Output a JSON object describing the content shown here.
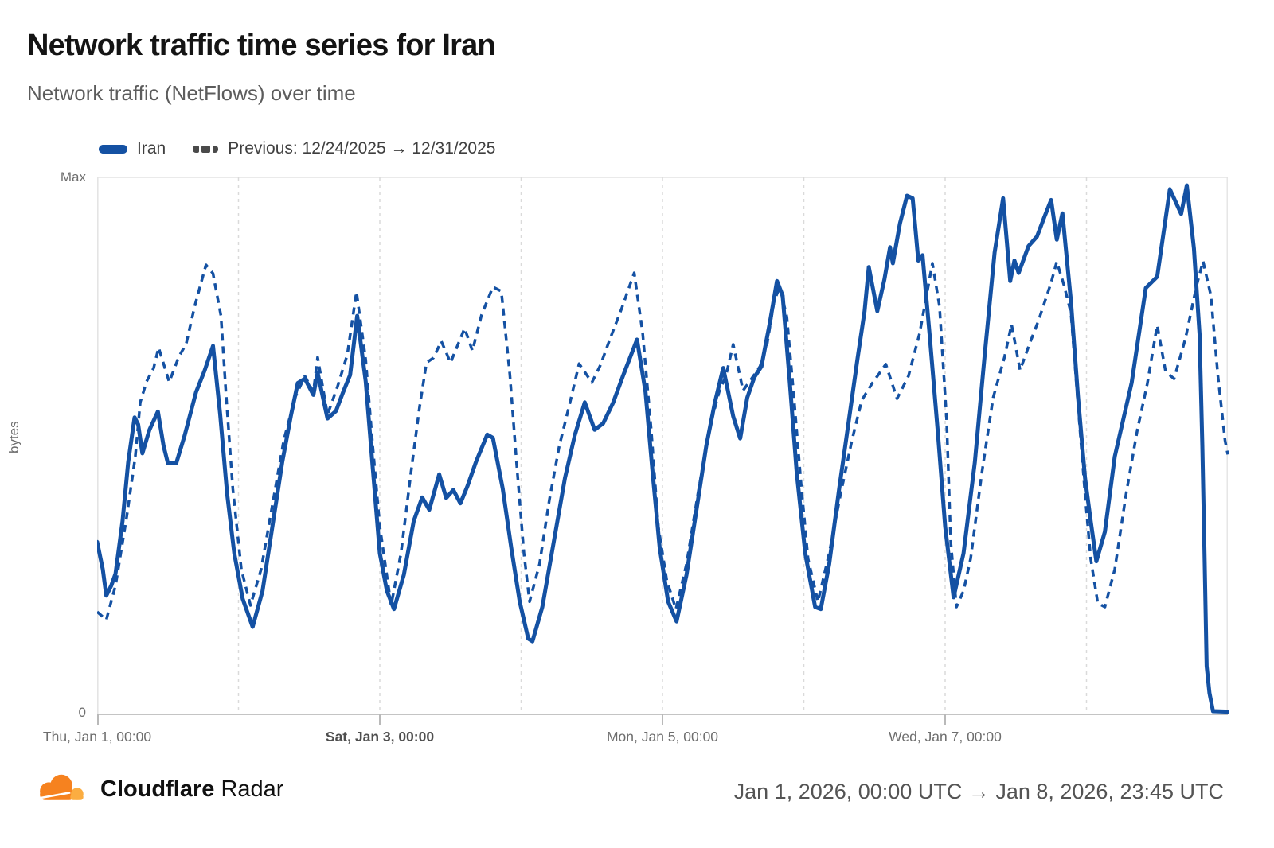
{
  "header": {
    "title": "Network traffic time series for Iran",
    "subtitle": "Network traffic (NetFlows) over time"
  },
  "legend": {
    "series1_label": "Iran",
    "series2_label": "Previous: 12/24/2025 → 12/31/2025"
  },
  "chart_data": {
    "type": "line",
    "title": "Network traffic time series for Iran",
    "subtitle": "Network traffic (NetFlows) over time",
    "ylabel": "bytes",
    "y_axis": {
      "top_tick": "Max",
      "bottom_tick": "0"
    },
    "ylim_normalized": [
      0,
      1
    ],
    "x_unit": "days since Jan 1, 2026 00:00 UTC",
    "x_range_days": [
      0,
      8
    ],
    "grid": "vertical dashed gridline at each day boundary",
    "legend_position": "top-left",
    "x_tick_labels": [
      {
        "label": "Thu, Jan 1, 00:00",
        "day": 0,
        "bold": false
      },
      {
        "label": "Sat, Jan 3, 00:00",
        "day": 2,
        "bold": true
      },
      {
        "label": "Mon, Jan 5, 00:00",
        "day": 4,
        "bold": false
      },
      {
        "label": "Wed, Jan 7, 00:00",
        "day": 6,
        "bold": false
      }
    ],
    "series": [
      {
        "name": "Iran",
        "period": "Jan 1, 2026 00:00 UTC → Jan 8, 2026 23:45 UTC",
        "style": "solid",
        "color": "#1451A3",
        "points": [
          [
            0.0,
            0.321
          ],
          [
            0.04,
            0.27
          ],
          [
            0.065,
            0.221
          ],
          [
            0.1,
            0.24
          ],
          [
            0.13,
            0.262
          ],
          [
            0.18,
            0.36
          ],
          [
            0.22,
            0.47
          ],
          [
            0.265,
            0.553
          ],
          [
            0.29,
            0.54
          ],
          [
            0.32,
            0.486
          ],
          [
            0.37,
            0.53
          ],
          [
            0.43,
            0.564
          ],
          [
            0.47,
            0.5
          ],
          [
            0.5,
            0.468
          ],
          [
            0.56,
            0.468
          ],
          [
            0.62,
            0.52
          ],
          [
            0.7,
            0.6
          ],
          [
            0.76,
            0.64
          ],
          [
            0.82,
            0.686
          ],
          [
            0.87,
            0.56
          ],
          [
            0.92,
            0.41
          ],
          [
            0.97,
            0.3
          ],
          [
            1.03,
            0.215
          ],
          [
            1.1,
            0.163
          ],
          [
            1.17,
            0.23
          ],
          [
            1.24,
            0.35
          ],
          [
            1.31,
            0.47
          ],
          [
            1.37,
            0.555
          ],
          [
            1.42,
            0.617
          ],
          [
            1.47,
            0.625
          ],
          [
            1.53,
            0.595
          ],
          [
            1.56,
            0.636
          ],
          [
            1.63,
            0.551
          ],
          [
            1.69,
            0.565
          ],
          [
            1.74,
            0.6
          ],
          [
            1.79,
            0.632
          ],
          [
            1.84,
            0.742
          ],
          [
            1.9,
            0.62
          ],
          [
            1.95,
            0.46
          ],
          [
            2.0,
            0.3
          ],
          [
            2.05,
            0.23
          ],
          [
            2.1,
            0.196
          ],
          [
            2.17,
            0.26
          ],
          [
            2.24,
            0.36
          ],
          [
            2.3,
            0.404
          ],
          [
            2.35,
            0.381
          ],
          [
            2.42,
            0.447
          ],
          [
            2.47,
            0.403
          ],
          [
            2.52,
            0.418
          ],
          [
            2.57,
            0.393
          ],
          [
            2.62,
            0.425
          ],
          [
            2.68,
            0.47
          ],
          [
            2.76,
            0.521
          ],
          [
            2.8,
            0.515
          ],
          [
            2.87,
            0.42
          ],
          [
            2.93,
            0.31
          ],
          [
            2.99,
            0.21
          ],
          [
            3.05,
            0.141
          ],
          [
            3.08,
            0.136
          ],
          [
            3.15,
            0.2
          ],
          [
            3.23,
            0.32
          ],
          [
            3.31,
            0.44
          ],
          [
            3.38,
            0.52
          ],
          [
            3.45,
            0.581
          ],
          [
            3.52,
            0.53
          ],
          [
            3.58,
            0.542
          ],
          [
            3.65,
            0.58
          ],
          [
            3.72,
            0.63
          ],
          [
            3.82,
            0.698
          ],
          [
            3.88,
            0.6
          ],
          [
            3.93,
            0.45
          ],
          [
            3.98,
            0.31
          ],
          [
            4.04,
            0.21
          ],
          [
            4.1,
            0.173
          ],
          [
            4.17,
            0.26
          ],
          [
            4.24,
            0.38
          ],
          [
            4.31,
            0.5
          ],
          [
            4.37,
            0.58
          ],
          [
            4.43,
            0.645
          ],
          [
            4.5,
            0.555
          ],
          [
            4.55,
            0.514
          ],
          [
            4.6,
            0.59
          ],
          [
            4.65,
            0.628
          ],
          [
            4.7,
            0.648
          ],
          [
            4.76,
            0.73
          ],
          [
            4.81,
            0.807
          ],
          [
            4.85,
            0.78
          ],
          [
            4.9,
            0.62
          ],
          [
            4.95,
            0.45
          ],
          [
            5.01,
            0.3
          ],
          [
            5.08,
            0.2
          ],
          [
            5.12,
            0.196
          ],
          [
            5.18,
            0.28
          ],
          [
            5.25,
            0.42
          ],
          [
            5.32,
            0.55
          ],
          [
            5.38,
            0.662
          ],
          [
            5.43,
            0.751
          ],
          [
            5.46,
            0.833
          ],
          [
            5.52,
            0.751
          ],
          [
            5.57,
            0.81
          ],
          [
            5.61,
            0.87
          ],
          [
            5.63,
            0.84
          ],
          [
            5.68,
            0.914
          ],
          [
            5.73,
            0.966
          ],
          [
            5.77,
            0.961
          ],
          [
            5.81,
            0.845
          ],
          [
            5.84,
            0.855
          ],
          [
            5.89,
            0.707
          ],
          [
            5.95,
            0.52
          ],
          [
            6.0,
            0.35
          ],
          [
            6.06,
            0.218
          ],
          [
            6.13,
            0.3
          ],
          [
            6.21,
            0.47
          ],
          [
            6.28,
            0.67
          ],
          [
            6.35,
            0.86
          ],
          [
            6.41,
            0.961
          ],
          [
            6.46,
            0.807
          ],
          [
            6.49,
            0.845
          ],
          [
            6.52,
            0.822
          ],
          [
            6.59,
            0.872
          ],
          [
            6.65,
            0.89
          ],
          [
            6.7,
            0.925
          ],
          [
            6.75,
            0.958
          ],
          [
            6.79,
            0.884
          ],
          [
            6.83,
            0.933
          ],
          [
            6.89,
            0.769
          ],
          [
            6.94,
            0.591
          ],
          [
            6.99,
            0.44
          ],
          [
            7.03,
            0.36
          ],
          [
            7.07,
            0.285
          ],
          [
            7.13,
            0.34
          ],
          [
            7.2,
            0.48
          ],
          [
            7.32,
            0.618
          ],
          [
            7.42,
            0.794
          ],
          [
            7.5,
            0.815
          ],
          [
            7.59,
            0.978
          ],
          [
            7.67,
            0.932
          ],
          [
            7.71,
            0.985
          ],
          [
            7.76,
            0.868
          ],
          [
            7.8,
            0.708
          ],
          [
            7.82,
            0.5
          ],
          [
            7.835,
            0.3
          ],
          [
            7.85,
            0.09
          ],
          [
            7.87,
            0.04
          ],
          [
            7.895,
            0.006
          ],
          [
            8.0,
            0.005
          ]
        ]
      },
      {
        "name": "Previous: 12/24/2025 → 12/31/2025",
        "period": "Dec 24, 2025 → Dec 31, 2025 (overlaid on same axis)",
        "style": "dashed",
        "color": "#1451A3",
        "points": [
          [
            0.0,
            0.191
          ],
          [
            0.065,
            0.176
          ],
          [
            0.13,
            0.24
          ],
          [
            0.21,
            0.37
          ],
          [
            0.27,
            0.48
          ],
          [
            0.305,
            0.581
          ],
          [
            0.35,
            0.62
          ],
          [
            0.4,
            0.645
          ],
          [
            0.435,
            0.683
          ],
          [
            0.51,
            0.619
          ],
          [
            0.58,
            0.667
          ],
          [
            0.63,
            0.69
          ],
          [
            0.69,
            0.76
          ],
          [
            0.77,
            0.837
          ],
          [
            0.82,
            0.821
          ],
          [
            0.876,
            0.742
          ],
          [
            0.91,
            0.604
          ],
          [
            0.96,
            0.42
          ],
          [
            1.02,
            0.27
          ],
          [
            1.085,
            0.203
          ],
          [
            1.16,
            0.27
          ],
          [
            1.24,
            0.39
          ],
          [
            1.32,
            0.51
          ],
          [
            1.4,
            0.59
          ],
          [
            1.47,
            0.63
          ],
          [
            1.53,
            0.6
          ],
          [
            1.56,
            0.665
          ],
          [
            1.63,
            0.558
          ],
          [
            1.7,
            0.61
          ],
          [
            1.77,
            0.67
          ],
          [
            1.835,
            0.787
          ],
          [
            1.9,
            0.66
          ],
          [
            1.95,
            0.5
          ],
          [
            2.0,
            0.35
          ],
          [
            2.08,
            0.203
          ],
          [
            2.15,
            0.3
          ],
          [
            2.22,
            0.45
          ],
          [
            2.28,
            0.57
          ],
          [
            2.33,
            0.655
          ],
          [
            2.38,
            0.664
          ],
          [
            2.435,
            0.695
          ],
          [
            2.5,
            0.655
          ],
          [
            2.6,
            0.719
          ],
          [
            2.655,
            0.677
          ],
          [
            2.72,
            0.744
          ],
          [
            2.8,
            0.796
          ],
          [
            2.86,
            0.788
          ],
          [
            2.92,
            0.633
          ],
          [
            2.97,
            0.46
          ],
          [
            3.02,
            0.3
          ],
          [
            3.06,
            0.21
          ],
          [
            3.13,
            0.28
          ],
          [
            3.2,
            0.4
          ],
          [
            3.27,
            0.5
          ],
          [
            3.34,
            0.575
          ],
          [
            3.41,
            0.653
          ],
          [
            3.5,
            0.618
          ],
          [
            3.56,
            0.65
          ],
          [
            3.63,
            0.7
          ],
          [
            3.71,
            0.755
          ],
          [
            3.8,
            0.822
          ],
          [
            3.86,
            0.71
          ],
          [
            3.92,
            0.53
          ],
          [
            3.97,
            0.35
          ],
          [
            4.03,
            0.25
          ],
          [
            4.095,
            0.196
          ],
          [
            4.17,
            0.28
          ],
          [
            4.25,
            0.41
          ],
          [
            4.33,
            0.53
          ],
          [
            4.4,
            0.6
          ],
          [
            4.45,
            0.632
          ],
          [
            4.5,
            0.689
          ],
          [
            4.57,
            0.603
          ],
          [
            4.63,
            0.625
          ],
          [
            4.69,
            0.648
          ],
          [
            4.74,
            0.69
          ],
          [
            4.79,
            0.77
          ],
          [
            4.83,
            0.796
          ],
          [
            4.88,
            0.74
          ],
          [
            4.93,
            0.59
          ],
          [
            4.98,
            0.43
          ],
          [
            5.03,
            0.29
          ],
          [
            5.1,
            0.21
          ],
          [
            5.18,
            0.3
          ],
          [
            5.26,
            0.41
          ],
          [
            5.34,
            0.51
          ],
          [
            5.41,
            0.585
          ],
          [
            5.48,
            0.615
          ],
          [
            5.58,
            0.652
          ],
          [
            5.66,
            0.588
          ],
          [
            5.74,
            0.63
          ],
          [
            5.82,
            0.71
          ],
          [
            5.91,
            0.84
          ],
          [
            5.96,
            0.76
          ],
          [
            6.01,
            0.55
          ],
          [
            6.04,
            0.32
          ],
          [
            6.08,
            0.2
          ],
          [
            6.13,
            0.23
          ],
          [
            6.18,
            0.29
          ],
          [
            6.26,
            0.45
          ],
          [
            6.34,
            0.59
          ],
          [
            6.42,
            0.665
          ],
          [
            6.47,
            0.726
          ],
          [
            6.53,
            0.641
          ],
          [
            6.6,
            0.692
          ],
          [
            6.66,
            0.733
          ],
          [
            6.75,
            0.804
          ],
          [
            6.79,
            0.843
          ],
          [
            6.84,
            0.8
          ],
          [
            6.89,
            0.748
          ],
          [
            6.94,
            0.576
          ],
          [
            6.99,
            0.41
          ],
          [
            7.03,
            0.29
          ],
          [
            7.08,
            0.207
          ],
          [
            7.13,
            0.2
          ],
          [
            7.2,
            0.27
          ],
          [
            7.28,
            0.41
          ],
          [
            7.36,
            0.53
          ],
          [
            7.43,
            0.615
          ],
          [
            7.5,
            0.725
          ],
          [
            7.56,
            0.638
          ],
          [
            7.62,
            0.625
          ],
          [
            7.7,
            0.7
          ],
          [
            7.78,
            0.8
          ],
          [
            7.825,
            0.844
          ],
          [
            7.88,
            0.78
          ],
          [
            7.93,
            0.63
          ],
          [
            7.98,
            0.51
          ],
          [
            8.0,
            0.484
          ]
        ]
      }
    ]
  },
  "footer": {
    "brand_bold": "Cloudflare",
    "brand_regular": "Radar",
    "date_range": "Jan 1, 2026, 00:00 UTC → Jan 8, 2026, 23:45 UTC"
  },
  "colors": {
    "line_blue": "#1451A3",
    "grid": "#DADADA",
    "axis": "#C4C4C4",
    "box_border": "#E4E4E4",
    "tick": "#B9B9B9",
    "logo_orange": "#F6821F",
    "logo_orange_light": "#FBAD41"
  }
}
